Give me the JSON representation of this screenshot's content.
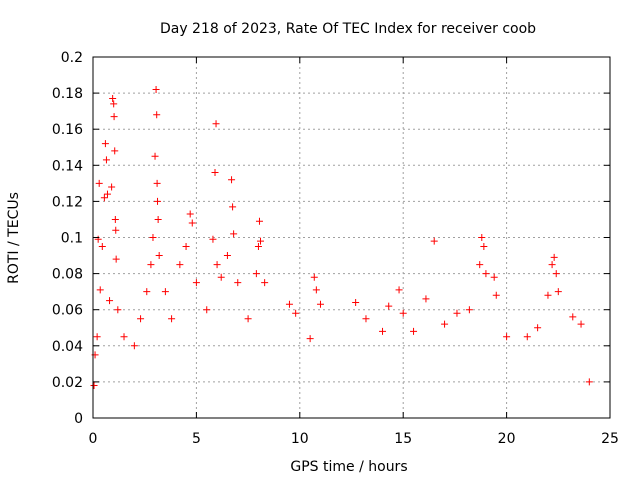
{
  "chart_data": {
    "type": "scatter",
    "title": "Day 218 of 2023, Rate Of TEC Index for receiver coob",
    "xlabel": "GPS time / hours",
    "ylabel": "ROTI / TECUs",
    "xlim": [
      0,
      25
    ],
    "ylim": [
      0,
      0.2
    ],
    "x_ticks": [
      "0",
      "5",
      "10",
      "15",
      "20",
      "25"
    ],
    "y_ticks": [
      "0",
      "0.02",
      "0.04",
      "0.06",
      "0.08",
      "0.1",
      "0.12",
      "0.14",
      "0.16",
      "0.18",
      "0.2"
    ],
    "grid": true,
    "marker": "+",
    "color": "#ff0000",
    "series": [
      {
        "values": [
          [
            0.05,
            0.018
          ],
          [
            0.1,
            0.035
          ],
          [
            0.2,
            0.045
          ],
          [
            0.25,
            0.099
          ],
          [
            0.3,
            0.13
          ],
          [
            0.35,
            0.071
          ],
          [
            0.45,
            0.095
          ],
          [
            0.55,
            0.122
          ],
          [
            0.6,
            0.152
          ],
          [
            0.65,
            0.143
          ],
          [
            0.7,
            0.124
          ],
          [
            0.8,
            0.065
          ],
          [
            0.9,
            0.128
          ],
          [
            0.95,
            0.177
          ],
          [
            1.0,
            0.174
          ],
          [
            1.02,
            0.167
          ],
          [
            1.05,
            0.148
          ],
          [
            1.08,
            0.11
          ],
          [
            1.1,
            0.104
          ],
          [
            1.12,
            0.088
          ],
          [
            1.2,
            0.06
          ],
          [
            1.5,
            0.045
          ],
          [
            2.0,
            0.04
          ],
          [
            2.3,
            0.055
          ],
          [
            2.6,
            0.07
          ],
          [
            2.8,
            0.085
          ],
          [
            2.9,
            0.1
          ],
          [
            3.0,
            0.145
          ],
          [
            3.05,
            0.182
          ],
          [
            3.08,
            0.168
          ],
          [
            3.1,
            0.13
          ],
          [
            3.12,
            0.12
          ],
          [
            3.15,
            0.11
          ],
          [
            3.2,
            0.09
          ],
          [
            3.5,
            0.07
          ],
          [
            3.8,
            0.055
          ],
          [
            4.2,
            0.085
          ],
          [
            4.5,
            0.095
          ],
          [
            4.7,
            0.113
          ],
          [
            4.8,
            0.108
          ],
          [
            5.0,
            0.075
          ],
          [
            5.5,
            0.06
          ],
          [
            5.8,
            0.099
          ],
          [
            5.9,
            0.136
          ],
          [
            5.95,
            0.163
          ],
          [
            6.0,
            0.085
          ],
          [
            6.2,
            0.078
          ],
          [
            6.5,
            0.09
          ],
          [
            6.7,
            0.132
          ],
          [
            6.75,
            0.117
          ],
          [
            6.8,
            0.102
          ],
          [
            7.0,
            0.075
          ],
          [
            7.5,
            0.055
          ],
          [
            7.9,
            0.08
          ],
          [
            8.0,
            0.095
          ],
          [
            8.05,
            0.109
          ],
          [
            8.1,
            0.098
          ],
          [
            8.3,
            0.075
          ],
          [
            9.5,
            0.063
          ],
          [
            9.8,
            0.058
          ],
          [
            10.5,
            0.044
          ],
          [
            10.7,
            0.078
          ],
          [
            10.8,
            0.071
          ],
          [
            11.0,
            0.063
          ],
          [
            12.7,
            0.064
          ],
          [
            13.2,
            0.055
          ],
          [
            14.0,
            0.048
          ],
          [
            14.3,
            0.062
          ],
          [
            14.8,
            0.071
          ],
          [
            15.0,
            0.058
          ],
          [
            15.5,
            0.048
          ],
          [
            16.1,
            0.066
          ],
          [
            16.5,
            0.098
          ],
          [
            17.0,
            0.052
          ],
          [
            17.6,
            0.058
          ],
          [
            18.2,
            0.06
          ],
          [
            18.7,
            0.085
          ],
          [
            18.8,
            0.1
          ],
          [
            18.9,
            0.095
          ],
          [
            19.0,
            0.08
          ],
          [
            19.4,
            0.078
          ],
          [
            19.5,
            0.068
          ],
          [
            20.0,
            0.045
          ],
          [
            21.0,
            0.045
          ],
          [
            21.5,
            0.05
          ],
          [
            22.0,
            0.068
          ],
          [
            22.2,
            0.085
          ],
          [
            22.3,
            0.089
          ],
          [
            22.4,
            0.08
          ],
          [
            22.5,
            0.07
          ],
          [
            23.2,
            0.056
          ],
          [
            23.6,
            0.052
          ],
          [
            24.0,
            0.02
          ]
        ]
      }
    ]
  }
}
